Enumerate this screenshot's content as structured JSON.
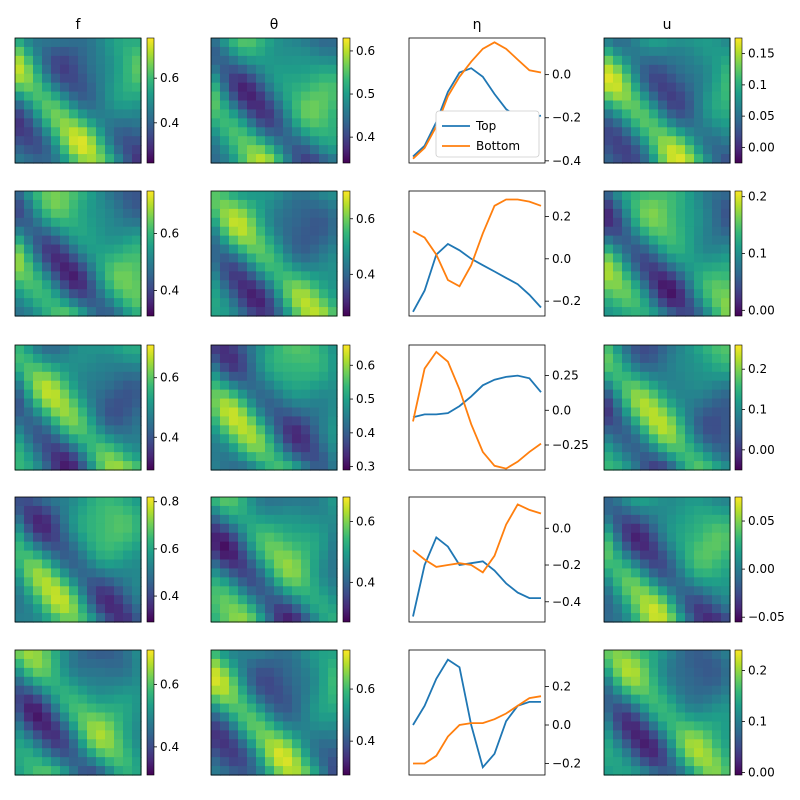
{
  "figure": {
    "column_titles": [
      "f",
      "θ",
      "η",
      "u"
    ]
  },
  "chart_data": {
    "type": "heatmap",
    "colormap": "viridis",
    "rows": [
      {
        "f": {
          "type": "heatmap",
          "colorbar_ticks": [
            0.4,
            0.6
          ],
          "range": [
            0.22,
            0.78
          ]
        },
        "theta": {
          "type": "heatmap",
          "colorbar_ticks": [
            0.4,
            0.5,
            0.6
          ],
          "range": [
            0.34,
            0.63
          ]
        },
        "eta": {
          "type": "line",
          "yticks": [
            0.0,
            -0.2,
            -0.4
          ],
          "ylim": [
            -0.41,
            0.17
          ],
          "legend": {
            "entries": [
              "Top",
              "Bottom"
            ],
            "position": "lower-right"
          },
          "series": [
            {
              "name": "Top",
              "color": "#1f77b4",
              "values": [
                -0.38,
                -0.33,
                -0.22,
                -0.08,
                0.01,
                0.03,
                -0.01,
                -0.09,
                -0.16,
                -0.2,
                -0.2,
                -0.19
              ]
            },
            {
              "name": "Bottom",
              "color": "#ff7f0e",
              "values": [
                -0.39,
                -0.34,
                -0.24,
                -0.1,
                -0.01,
                0.06,
                0.12,
                0.15,
                0.12,
                0.07,
                0.02,
                0.01
              ]
            }
          ]
        },
        "u": {
          "type": "heatmap",
          "colorbar_ticks": [
            0.15,
            0.1,
            0.05,
            0.0
          ],
          "range": [
            -0.025,
            0.175
          ]
        }
      },
      {
        "f": {
          "type": "heatmap",
          "colorbar_ticks": [
            0.4,
            0.6
          ],
          "range": [
            0.31,
            0.75
          ]
        },
        "theta": {
          "type": "heatmap",
          "colorbar_ticks": [
            0.4,
            0.6
          ],
          "range": [
            0.25,
            0.7
          ]
        },
        "eta": {
          "type": "line",
          "yticks": [
            0.2,
            0.0,
            -0.2
          ],
          "ylim": [
            -0.27,
            0.32
          ],
          "series": [
            {
              "name": "Top",
              "color": "#1f77b4",
              "values": [
                -0.25,
                -0.15,
                0.02,
                0.07,
                0.04,
                0.0,
                -0.03,
                -0.06,
                -0.09,
                -0.12,
                -0.17,
                -0.23
              ]
            },
            {
              "name": "Bottom",
              "color": "#ff7f0e",
              "values": [
                0.13,
                0.1,
                0.02,
                -0.1,
                -0.13,
                -0.03,
                0.12,
                0.25,
                0.28,
                0.28,
                0.27,
                0.25
              ]
            }
          ]
        },
        "u": {
          "type": "heatmap",
          "colorbar_ticks": [
            0.2,
            0.1,
            0.0
          ],
          "range": [
            -0.01,
            0.21
          ]
        }
      },
      {
        "f": {
          "type": "heatmap",
          "colorbar_ticks": [
            0.6,
            0.4
          ],
          "range": [
            0.29,
            0.71
          ]
        },
        "theta": {
          "type": "heatmap",
          "colorbar_ticks": [
            0.6,
            0.5,
            0.4,
            0.3
          ],
          "range": [
            0.29,
            0.66
          ]
        },
        "eta": {
          "type": "line",
          "yticks": [
            0.25,
            0.0,
            -0.25
          ],
          "ylim": [
            -0.43,
            0.47
          ],
          "series": [
            {
              "name": "Top",
              "color": "#1f77b4",
              "values": [
                -0.05,
                -0.03,
                -0.03,
                -0.02,
                0.03,
                0.1,
                0.18,
                0.22,
                0.24,
                0.25,
                0.23,
                0.13
              ]
            },
            {
              "name": "Bottom",
              "color": "#ff7f0e",
              "values": [
                -0.08,
                0.3,
                0.42,
                0.35,
                0.15,
                -0.1,
                -0.3,
                -0.4,
                -0.42,
                -0.37,
                -0.3,
                -0.24
              ]
            }
          ]
        },
        "u": {
          "type": "heatmap",
          "colorbar_ticks": [
            0.2,
            0.1,
            0.0
          ],
          "range": [
            -0.05,
            0.26
          ]
        }
      },
      {
        "f": {
          "type": "heatmap",
          "colorbar_ticks": [
            0.8,
            0.6,
            0.4
          ],
          "range": [
            0.29,
            0.82
          ]
        },
        "theta": {
          "type": "heatmap",
          "colorbar_ticks": [
            0.6,
            0.4
          ],
          "range": [
            0.27,
            0.68
          ]
        },
        "eta": {
          "type": "line",
          "yticks": [
            0.0,
            -0.2,
            -0.4
          ],
          "ylim": [
            -0.51,
            0.17
          ],
          "series": [
            {
              "name": "Top",
              "color": "#1f77b4",
              "values": [
                -0.48,
                -0.2,
                -0.05,
                -0.1,
                -0.2,
                -0.19,
                -0.18,
                -0.23,
                -0.3,
                -0.35,
                -0.38,
                -0.38
              ]
            },
            {
              "name": "Bottom",
              "color": "#ff7f0e",
              "values": [
                -0.12,
                -0.17,
                -0.21,
                -0.2,
                -0.19,
                -0.2,
                -0.24,
                -0.15,
                0.02,
                0.13,
                0.1,
                0.08
              ]
            }
          ]
        },
        "u": {
          "type": "heatmap",
          "colorbar_ticks": [
            0.05,
            0.0,
            -0.05
          ],
          "range": [
            -0.055,
            0.075
          ]
        }
      },
      {
        "f": {
          "type": "heatmap",
          "colorbar_ticks": [
            0.6,
            0.4
          ],
          "range": [
            0.31,
            0.71
          ]
        },
        "theta": {
          "type": "heatmap",
          "colorbar_ticks": [
            0.6,
            0.4
          ],
          "range": [
            0.27,
            0.75
          ]
        },
        "eta": {
          "type": "line",
          "yticks": [
            0.2,
            0.0,
            -0.2
          ],
          "ylim": [
            -0.26,
            0.39
          ],
          "series": [
            {
              "name": "Top",
              "color": "#1f77b4",
              "values": [
                0.0,
                0.1,
                0.24,
                0.34,
                0.3,
                0.0,
                -0.22,
                -0.15,
                0.02,
                0.1,
                0.12,
                0.12
              ]
            },
            {
              "name": "Bottom",
              "color": "#ff7f0e",
              "values": [
                -0.2,
                -0.2,
                -0.16,
                -0.06,
                0.0,
                0.01,
                0.01,
                0.03,
                0.06,
                0.1,
                0.14,
                0.15
              ]
            }
          ]
        },
        "u": {
          "type": "heatmap",
          "colorbar_ticks": [
            0.2,
            0.1,
            0.0
          ],
          "range": [
            -0.005,
            0.24
          ]
        }
      }
    ]
  }
}
